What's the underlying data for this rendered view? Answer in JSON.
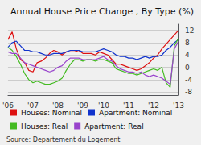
{
  "chart_data": {
    "type": "line",
    "title": "Annual House Price Change , By Type (%)",
    "annotations": [
      "Source: Departement du Logement"
    ],
    "categories": [
      "'06",
      null,
      null,
      null,
      null,
      null,
      "'07",
      null,
      null,
      null,
      null,
      null,
      "'08",
      null,
      null,
      null,
      null,
      null,
      "'09",
      null,
      null,
      null,
      null,
      "'10",
      null,
      null,
      null,
      null,
      null,
      "'11",
      null,
      null,
      null,
      null,
      null,
      "'12",
      null,
      null,
      null,
      null,
      null,
      "'13"
    ],
    "series": [
      {
        "name": "Houses: Nominal",
        "color": "#dd1111",
        "values": [
          9.0,
          11.5,
          6.0,
          2.5,
          1.5,
          -1.0,
          -1.5,
          1.5,
          2.0,
          3.0,
          4.5,
          5.5,
          5.0,
          4.0,
          5.0,
          5.0,
          5.0,
          5.5,
          4.5,
          4.5,
          4.5,
          4.0,
          5.0,
          4.5,
          4.0,
          2.5,
          1.0,
          1.0,
          0.5,
          0.0,
          -0.5,
          -1.0,
          -0.5,
          0.5,
          1.5,
          3.0,
          4.0,
          6.0,
          7.5,
          9.0,
          10.5,
          12.0
        ]
      },
      {
        "name": "Apartment: Nominal",
        "color": "#1133cc",
        "values": [
          6.5,
          8.0,
          8.5,
          7.0,
          5.5,
          5.5,
          5.0,
          5.0,
          4.5,
          4.0,
          4.0,
          4.5,
          4.5,
          4.5,
          5.0,
          5.5,
          5.5,
          5.5,
          5.0,
          5.0,
          5.0,
          5.0,
          5.5,
          6.0,
          5.5,
          5.0,
          4.0,
          3.5,
          3.5,
          3.0,
          3.0,
          2.5,
          3.0,
          3.5,
          3.0,
          3.5,
          3.5,
          4.0,
          5.5,
          6.5,
          8.0,
          9.0
        ]
      },
      {
        "name": "Houses: Real",
        "color": "#44bb22",
        "values": [
          6.5,
          5.5,
          3.5,
          1.0,
          -2.0,
          -4.0,
          -5.0,
          -4.5,
          -5.0,
          -5.5,
          -5.5,
          -5.0,
          -4.5,
          -3.5,
          -1.0,
          1.0,
          2.5,
          2.5,
          2.0,
          2.5,
          2.5,
          2.0,
          2.5,
          2.5,
          2.0,
          1.5,
          -0.5,
          -1.0,
          -1.5,
          -2.0,
          -2.0,
          -2.5,
          -2.0,
          -1.5,
          -1.0,
          -0.5,
          -1.0,
          0.0,
          -5.0,
          -6.5,
          7.0,
          9.5
        ]
      },
      {
        "name": "Apartment: Real",
        "color": "#9944cc",
        "values": [
          5.0,
          4.5,
          4.5,
          3.0,
          1.5,
          1.0,
          0.5,
          0.0,
          -0.5,
          -1.0,
          -1.5,
          -1.0,
          0.0,
          0.5,
          2.0,
          3.0,
          3.0,
          3.0,
          2.5,
          2.5,
          2.5,
          2.5,
          3.0,
          3.5,
          2.5,
          2.0,
          0.5,
          -0.5,
          -1.0,
          -1.5,
          -1.5,
          -2.0,
          -1.5,
          -2.5,
          -3.0,
          -2.5,
          -3.0,
          -3.5,
          -4.5,
          -5.5,
          6.0,
          8.5
        ]
      }
    ],
    "ylim": [
      -9,
      14
    ],
    "yticks": [
      -8,
      -4,
      0,
      4,
      8,
      12
    ],
    "grid": true,
    "legend": "bottom"
  }
}
